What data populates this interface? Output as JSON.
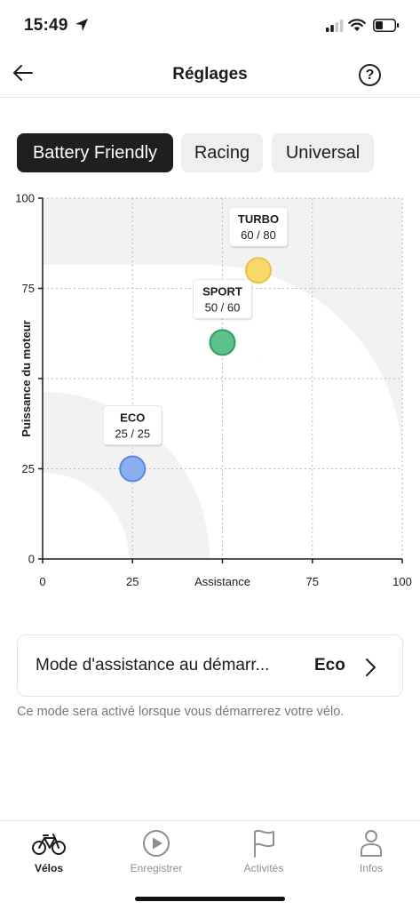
{
  "status_bar": {
    "time": "15:49"
  },
  "nav": {
    "title": "Réglages",
    "help_symbol": "?"
  },
  "tabs": [
    {
      "label": "Battery Friendly",
      "active": true
    },
    {
      "label": "Racing",
      "active": false
    },
    {
      "label": "Universal",
      "active": false
    }
  ],
  "chart_data": {
    "type": "scatter",
    "xlabel": "Assistance",
    "ylabel": "Puissance du moteur",
    "xlim": [
      0,
      100
    ],
    "ylim": [
      0,
      100
    ],
    "x_ticks": [
      "0",
      "25",
      "Assistance",
      "75",
      "100"
    ],
    "y_ticks": [
      "0",
      "25",
      "",
      "75",
      "100"
    ],
    "grid": true,
    "points": [
      {
        "name": "ECO",
        "x": 25,
        "y": 25,
        "label": "25 / 25",
        "color": "#8aaef0",
        "stroke": "#5a86dd"
      },
      {
        "name": "SPORT",
        "x": 50,
        "y": 60,
        "label": "50 / 60",
        "color": "#5cc28c",
        "stroke": "#2f9e63"
      },
      {
        "name": "TURBO",
        "x": 60,
        "y": 80,
        "label": "60 / 80",
        "color": "#f7d96a",
        "stroke": "#e8c244"
      }
    ]
  },
  "startup_mode": {
    "label": "Mode d'assistance au démarr...",
    "value": "Eco",
    "note": "Ce mode sera activé lorsque vous démarrerez votre vélo."
  },
  "tabbar": [
    {
      "label": "Vélos",
      "icon": "bike-icon",
      "active": true
    },
    {
      "label": "Enregistrer",
      "icon": "play-circle-icon",
      "active": false
    },
    {
      "label": "Activités",
      "icon": "flag-icon",
      "active": false
    },
    {
      "label": "Infos",
      "icon": "person-icon",
      "active": false
    }
  ]
}
